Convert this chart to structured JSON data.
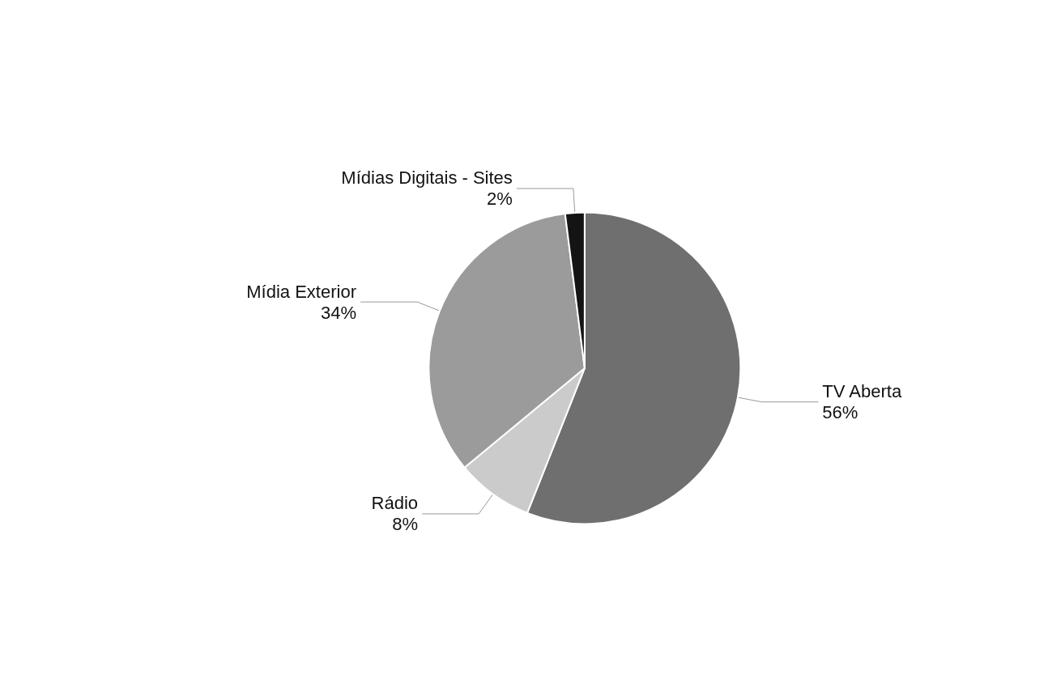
{
  "chart_data": {
    "type": "pie",
    "categories": [
      "TV Aberta",
      "Rádio",
      "Mídia Exterior",
      "Mídias Digitais - Sites"
    ],
    "values": [
      56,
      8,
      34,
      2
    ],
    "value_labels": [
      "56%",
      "8%",
      "34%",
      "2%"
    ],
    "colors": [
      "#6f6f6f",
      "#cbcbcb",
      "#9b9b9b",
      "#141414"
    ],
    "legend": false
  }
}
